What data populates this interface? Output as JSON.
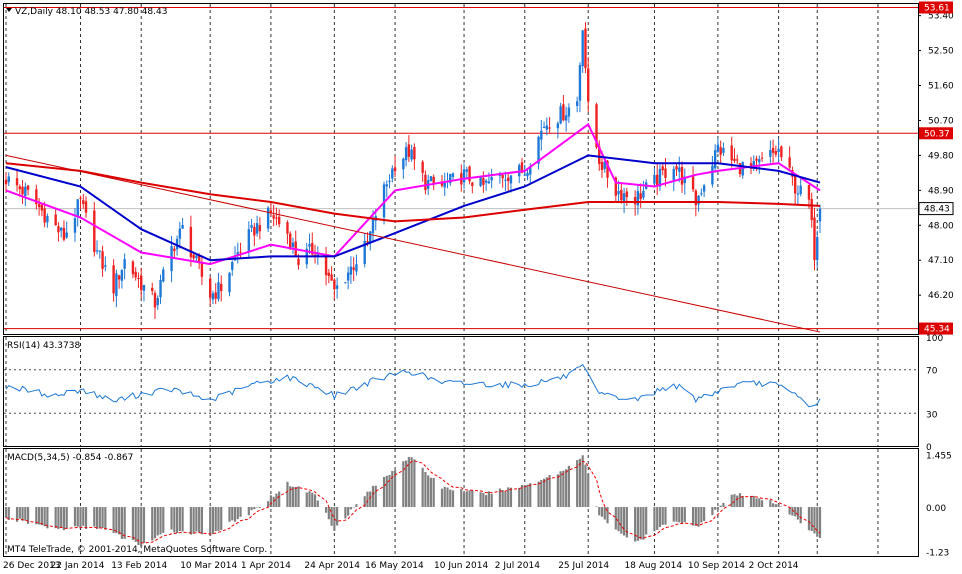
{
  "chart_data": [
    {
      "panel": "price",
      "type": "candlestick",
      "title": "VZ,Daily  48.10 48.53 47.80 48.43",
      "symbol": "VZ",
      "timeframe": "Daily",
      "ohlc_current": {
        "open": 48.1,
        "high": 48.53,
        "low": 47.8,
        "close": 48.43
      },
      "ylim": [
        45.2,
        53.7
      ],
      "y_ticks": [
        "53.40",
        "52.50",
        "51.60",
        "50.70",
        "49.80",
        "48.90",
        "48.00",
        "47.10",
        "46.20"
      ],
      "x_ticks": [
        "26 Dec 2013",
        "22 Jan 2014",
        "13 Feb 2014",
        "10 Mar 2014",
        "1 Apr 2014",
        "24 Apr 2014",
        "16 May 2014",
        "10 Jun 2014",
        "2 Jul 2014",
        "25 Jul 2014",
        "18 Aug 2014",
        "10 Sep 2014",
        "2 Oct 2014"
      ],
      "horizontal_levels": [
        {
          "value": 53.61,
          "label": "53.61",
          "color": "#dd0000"
        },
        {
          "value": 50.37,
          "label": "50.37",
          "color": "#dd0000"
        },
        {
          "value": 45.34,
          "label": "45.34",
          "color": "#dd0000"
        }
      ],
      "current_price_label": "48.43",
      "trendline": {
        "from": [
          "26 Dec 2013",
          49.8
        ],
        "to": [
          "17 Oct 2014",
          45.25
        ],
        "color": "#cc0000"
      },
      "close_path": [
        [
          "26 Dec 2013",
          49.2
        ],
        [
          "3 Jan 2014",
          48.8
        ],
        [
          "10 Jan 2014",
          48.2
        ],
        [
          "16 Jan 2014",
          47.7
        ],
        [
          "22 Jan 2014",
          48.6
        ],
        [
          "28 Jan 2014",
          47.3
        ],
        [
          "3 Feb 2014",
          46.4
        ],
        [
          "7 Feb 2014",
          47.1
        ],
        [
          "13 Feb 2014",
          46.5
        ],
        [
          "18 Feb 2014",
          46.0
        ],
        [
          "24 Feb 2014",
          47.4
        ],
        [
          "28 Feb 2014",
          47.9
        ],
        [
          "5 Mar 2014",
          47.0
        ],
        [
          "10 Mar 2014",
          46.2
        ],
        [
          "14 Mar 2014",
          46.4
        ],
        [
          "20 Mar 2014",
          47.3
        ],
        [
          "26 Mar 2014",
          47.9
        ],
        [
          "1 Apr 2014",
          48.3
        ],
        [
          "7 Apr 2014",
          47.8
        ],
        [
          "11 Apr 2014",
          47.1
        ],
        [
          "17 Apr 2014",
          47.4
        ],
        [
          "24 Apr 2014",
          46.3
        ],
        [
          "30 Apr 2014",
          46.9
        ],
        [
          "6 May 2014",
          47.5
        ],
        [
          "9 May 2014",
          48.3
        ],
        [
          "12 May 2014",
          48.9
        ],
        [
          "16 May 2014",
          49.6
        ],
        [
          "21 May 2014",
          49.9
        ],
        [
          "27 May 2014",
          49.1
        ],
        [
          "2 Jun 2014",
          49.0
        ],
        [
          "10 Jun 2014",
          49.3
        ],
        [
          "17 Jun 2014",
          49.0
        ],
        [
          "24 Jun 2014",
          49.3
        ],
        [
          "2 Jul 2014",
          49.4
        ],
        [
          "9 Jul 2014",
          50.6
        ],
        [
          "16 Jul 2014",
          50.9
        ],
        [
          "21 Jul 2014",
          51.2
        ],
        [
          "23 Jul 2014",
          53.2
        ],
        [
          "25 Jul 2014",
          51.0
        ],
        [
          "29 Jul 2014",
          49.7
        ],
        [
          "4 Aug 2014",
          48.9
        ],
        [
          "11 Aug 2014",
          48.7
        ],
        [
          "18 Aug 2014",
          49.1
        ],
        [
          "25 Aug 2014",
          49.6
        ],
        [
          "2 Sep 2014",
          48.6
        ],
        [
          "10 Sep 2014",
          50.0
        ],
        [
          "16 Sep 2014",
          49.6
        ],
        [
          "22 Sep 2014",
          49.4
        ],
        [
          "29 Sep 2014",
          49.8
        ],
        [
          "2 Oct 2014",
          49.9
        ],
        [
          "8 Oct 2014",
          49.0
        ],
        [
          "13 Oct 2014",
          48.6
        ],
        [
          "15 Oct 2014",
          47.3
        ],
        [
          "17 Oct 2014",
          48.43
        ]
      ],
      "series": [
        {
          "role": "ma_short",
          "color": "#ff00ff",
          "points": [
            [
              "26 Dec 2013",
              48.9
            ],
            [
              "22 Jan 2014",
              48.2
            ],
            [
              "13 Feb 2014",
              47.3
            ],
            [
              "10 Mar 2014",
              47.0
            ],
            [
              "1 Apr 2014",
              47.5
            ],
            [
              "24 Apr 2014",
              47.2
            ],
            [
              "16 May 2014",
              48.9
            ],
            [
              "10 Jun 2014",
              49.2
            ],
            [
              "2 Jul 2014",
              49.4
            ],
            [
              "25 Jul 2014",
              50.6
            ],
            [
              "4 Aug 2014",
              49.1
            ],
            [
              "18 Aug 2014",
              49.0
            ],
            [
              "2 Sep 2014",
              49.3
            ],
            [
              "10 Sep 2014",
              49.4
            ],
            [
              "2 Oct 2014",
              49.6
            ],
            [
              "17 Oct 2014",
              48.9
            ]
          ]
        },
        {
          "role": "ma_mid",
          "color": "#0000cc",
          "points": [
            [
              "26 Dec 2013",
              49.5
            ],
            [
              "22 Jan 2014",
              49.0
            ],
            [
              "13 Feb 2014",
              47.9
            ],
            [
              "10 Mar 2014",
              47.1
            ],
            [
              "1 Apr 2014",
              47.2
            ],
            [
              "24 Apr 2014",
              47.2
            ],
            [
              "16 May 2014",
              47.8
            ],
            [
              "10 Jun 2014",
              48.5
            ],
            [
              "2 Jul 2014",
              49.0
            ],
            [
              "25 Jul 2014",
              49.8
            ],
            [
              "18 Aug 2014",
              49.6
            ],
            [
              "10 Sep 2014",
              49.6
            ],
            [
              "2 Oct 2014",
              49.4
            ],
            [
              "17 Oct 2014",
              49.1
            ]
          ]
        },
        {
          "role": "ma_long",
          "color": "#dd0000",
          "points": [
            [
              "26 Dec 2013",
              49.6
            ],
            [
              "22 Jan 2014",
              49.4
            ],
            [
              "13 Feb 2014",
              49.1
            ],
            [
              "10 Mar 2014",
              48.8
            ],
            [
              "1 Apr 2014",
              48.6
            ],
            [
              "24 Apr 2014",
              48.3
            ],
            [
              "16 May 2014",
              48.1
            ],
            [
              "10 Jun 2014",
              48.2
            ],
            [
              "2 Jul 2014",
              48.4
            ],
            [
              "25 Jul 2014",
              48.6
            ],
            [
              "18 Aug 2014",
              48.6
            ],
            [
              "10 Sep 2014",
              48.6
            ],
            [
              "2 Oct 2014",
              48.55
            ],
            [
              "17 Oct 2014",
              48.5
            ]
          ]
        }
      ]
    },
    {
      "panel": "rsi",
      "type": "line",
      "title": "RSI(14) 43.3738",
      "period": 14,
      "last_value": 43.3738,
      "ylim": [
        0,
        100
      ],
      "y_ticks": [
        "100",
        "70",
        "30",
        "0"
      ],
      "levels": [
        70,
        30
      ],
      "color": "#1e78d7",
      "series": [
        {
          "points": [
            [
              "26 Dec 2013",
              55
            ],
            [
              "13 Jan 2014",
              46
            ],
            [
              "22 Jan 2014",
              52
            ],
            [
              "3 Feb 2014",
              41
            ],
            [
              "13 Feb 2014",
              48
            ],
            [
              "24 Feb 2014",
              52
            ],
            [
              "10 Mar 2014",
              42
            ],
            [
              "26 Mar 2014",
              57
            ],
            [
              "7 Apr 2014",
              63
            ],
            [
              "17 Apr 2014",
              55
            ],
            [
              "24 Apr 2014",
              46
            ],
            [
              "6 May 2014",
              58
            ],
            [
              "16 May 2014",
              66
            ],
            [
              "21 May 2014",
              69
            ],
            [
              "2 Jun 2014",
              58
            ],
            [
              "17 Jun 2014",
              57
            ],
            [
              "2 Jul 2014",
              56
            ],
            [
              "16 Jul 2014",
              63
            ],
            [
              "23 Jul 2014",
              72
            ],
            [
              "29 Jul 2014",
              47
            ],
            [
              "11 Aug 2014",
              42
            ],
            [
              "25 Aug 2014",
              57
            ],
            [
              "2 Sep 2014",
              43
            ],
            [
              "16 Sep 2014",
              56
            ],
            [
              "29 Sep 2014",
              58
            ],
            [
              "8 Oct 2014",
              47
            ],
            [
              "15 Oct 2014",
              35
            ],
            [
              "17 Oct 2014",
              43.3738
            ]
          ]
        }
      ]
    },
    {
      "panel": "macd",
      "type": "bar",
      "title": "MACD(5,34,5) -0.854 -0.867",
      "params": [
        5,
        34,
        5
      ],
      "values_label": [
        "-0.854",
        "-0.867"
      ],
      "ylim": [
        -1.35,
        1.6
      ],
      "y_ticks": [
        "1.455",
        "0.00",
        "-1.23"
      ],
      "bar_color": "#808080",
      "signal_color": "#ee0000",
      "histogram_points": [
        [
          "26 Dec 2013",
          -0.3
        ],
        [
          "13 Jan 2014",
          -0.6
        ],
        [
          "28 Jan 2014",
          -0.55
        ],
        [
          "13 Feb 2014",
          -1.05
        ],
        [
          "24 Feb 2014",
          -0.65
        ],
        [
          "10 Mar 2014",
          -0.75
        ],
        [
          "26 Mar 2014",
          -0.1
        ],
        [
          "7 Apr 2014",
          0.65
        ],
        [
          "17 Apr 2014",
          0.35
        ],
        [
          "24 Apr 2014",
          -0.6
        ],
        [
          "6 May 2014",
          0.4
        ],
        [
          "21 May 2014",
          1.4
        ],
        [
          "2 Jun 2014",
          0.55
        ],
        [
          "17 Jun 2014",
          0.35
        ],
        [
          "2 Jul 2014",
          0.6
        ],
        [
          "16 Jul 2014",
          1.0
        ],
        [
          "23 Jul 2014",
          1.45
        ],
        [
          "29 Jul 2014",
          -0.25
        ],
        [
          "11 Aug 2014",
          -1.0
        ],
        [
          "25 Aug 2014",
          -0.35
        ],
        [
          "2 Sep 2014",
          -0.55
        ],
        [
          "16 Sep 2014",
          0.35
        ],
        [
          "29 Sep 2014",
          0.2
        ],
        [
          "8 Oct 2014",
          -0.3
        ],
        [
          "17 Oct 2014",
          -0.854
        ]
      ]
    }
  ],
  "footer": {
    "copyright": "MT4 TeleTrade, © 2001-2014, MetaQuotes Software Corp."
  },
  "colors": {
    "bull": "#1e78d7",
    "bear": "#ee2222",
    "grid": "#000000",
    "background": "#ffffff"
  }
}
